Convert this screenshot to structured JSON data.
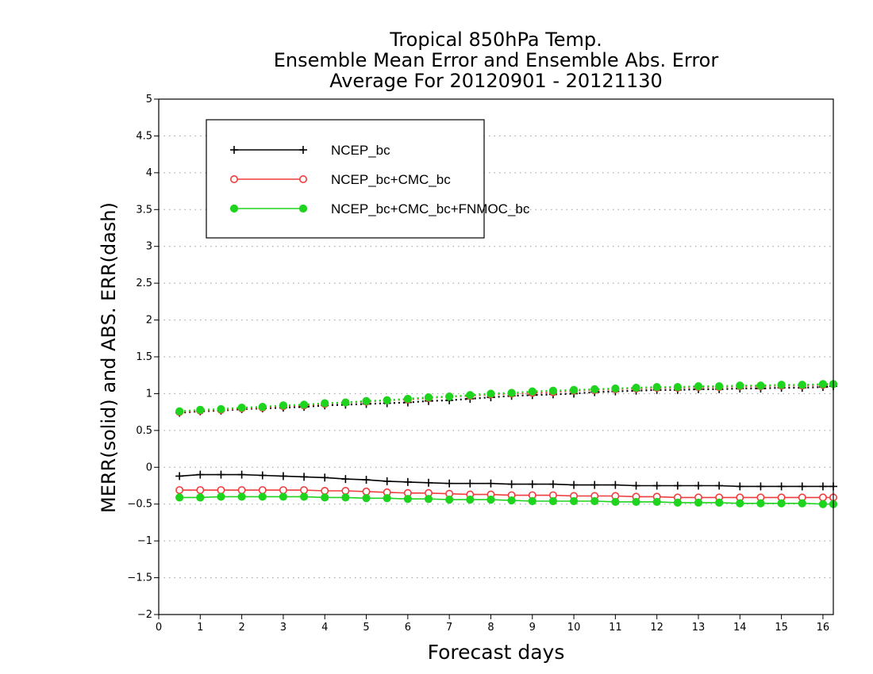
{
  "chart_data": {
    "type": "line",
    "title": [
      "Tropical 850hPa Temp.",
      "Ensemble Mean Error and Ensemble Abs. Error",
      "Average For 20120901 - 20121130"
    ],
    "xlabel": "Forecast days",
    "ylabel": "MERR(solid) and ABS. ERR(dash)",
    "xlim": [
      0,
      16.25
    ],
    "ylim": [
      -2,
      5
    ],
    "xticks": [
      0,
      1,
      2,
      3,
      4,
      5,
      6,
      7,
      8,
      9,
      10,
      11,
      12,
      13,
      14,
      15,
      16
    ],
    "yticks": [
      5,
      4.5,
      4,
      3.5,
      3,
      2.5,
      2,
      1.5,
      1,
      0.5,
      0,
      -0.5,
      -1,
      -1.5,
      -2
    ],
    "ytick_labels": [
      "5",
      "4.5",
      "4",
      "3.5",
      "3",
      "2.5",
      "2",
      "1.5",
      "1",
      "0.5",
      "0",
      "−0.5",
      "−1",
      "−1.5",
      "−2"
    ],
    "grid": true,
    "legend_position": "top-left",
    "x": [
      0.5,
      1,
      1.5,
      2,
      2.5,
      3,
      3.5,
      4,
      4.5,
      5,
      5.5,
      6,
      6.5,
      7,
      7.5,
      8,
      8.5,
      9,
      9.5,
      10,
      10.5,
      11,
      11.5,
      12,
      12.5,
      13,
      13.5,
      14,
      14.5,
      15,
      15.5,
      16,
      16.25
    ],
    "series": [
      {
        "name": "NCEP_bc",
        "color": "#000000",
        "marker": "plus",
        "merr": [
          -0.12,
          -0.1,
          -0.1,
          -0.1,
          -0.11,
          -0.12,
          -0.13,
          -0.14,
          -0.16,
          -0.17,
          -0.19,
          -0.2,
          -0.21,
          -0.22,
          -0.22,
          -0.22,
          -0.23,
          -0.23,
          -0.23,
          -0.24,
          -0.24,
          -0.24,
          -0.25,
          -0.25,
          -0.25,
          -0.25,
          -0.25,
          -0.26,
          -0.26,
          -0.26,
          -0.26,
          -0.26,
          -0.26
        ],
        "abs_err": [
          0.74,
          0.76,
          0.77,
          0.79,
          0.8,
          0.81,
          0.82,
          0.84,
          0.85,
          0.86,
          0.87,
          0.88,
          0.9,
          0.91,
          0.93,
          0.95,
          0.97,
          0.98,
          0.99,
          1.0,
          1.02,
          1.03,
          1.04,
          1.05,
          1.05,
          1.06,
          1.06,
          1.07,
          1.07,
          1.08,
          1.08,
          1.09,
          1.1
        ]
      },
      {
        "name": "NCEP_bc+CMC_bc",
        "color": "#f03c3c",
        "marker": "open-circle",
        "merr": [
          -0.31,
          -0.31,
          -0.31,
          -0.31,
          -0.31,
          -0.31,
          -0.31,
          -0.32,
          -0.32,
          -0.33,
          -0.34,
          -0.35,
          -0.35,
          -0.36,
          -0.37,
          -0.37,
          -0.38,
          -0.38,
          -0.38,
          -0.39,
          -0.39,
          -0.39,
          -0.4,
          -0.4,
          -0.41,
          -0.41,
          -0.41,
          -0.41,
          -0.41,
          -0.41,
          -0.41,
          -0.41,
          -0.41
        ],
        "abs_err": [
          0.75,
          0.77,
          0.78,
          0.8,
          0.81,
          0.83,
          0.84,
          0.86,
          0.88,
          0.89,
          0.91,
          0.92,
          0.94,
          0.96,
          0.97,
          0.99,
          1.0,
          1.01,
          1.02,
          1.04,
          1.05,
          1.06,
          1.07,
          1.08,
          1.08,
          1.09,
          1.09,
          1.1,
          1.1,
          1.11,
          1.11,
          1.12,
          1.13
        ]
      },
      {
        "name": "NCEP_bc+CMC_bc+FNMOC_bc",
        "color": "#1fd41f",
        "marker": "filled-circle",
        "merr": [
          -0.41,
          -0.41,
          -0.4,
          -0.4,
          -0.4,
          -0.4,
          -0.4,
          -0.41,
          -0.41,
          -0.42,
          -0.42,
          -0.43,
          -0.43,
          -0.44,
          -0.44,
          -0.44,
          -0.45,
          -0.46,
          -0.46,
          -0.46,
          -0.46,
          -0.47,
          -0.47,
          -0.47,
          -0.48,
          -0.48,
          -0.48,
          -0.49,
          -0.49,
          -0.49,
          -0.49,
          -0.5,
          -0.5
        ],
        "abs_err": [
          0.76,
          0.78,
          0.79,
          0.81,
          0.82,
          0.84,
          0.85,
          0.87,
          0.88,
          0.9,
          0.91,
          0.93,
          0.95,
          0.96,
          0.98,
          1.0,
          1.01,
          1.03,
          1.04,
          1.05,
          1.06,
          1.07,
          1.08,
          1.09,
          1.09,
          1.1,
          1.1,
          1.11,
          1.11,
          1.12,
          1.12,
          1.13,
          1.13
        ]
      }
    ]
  }
}
